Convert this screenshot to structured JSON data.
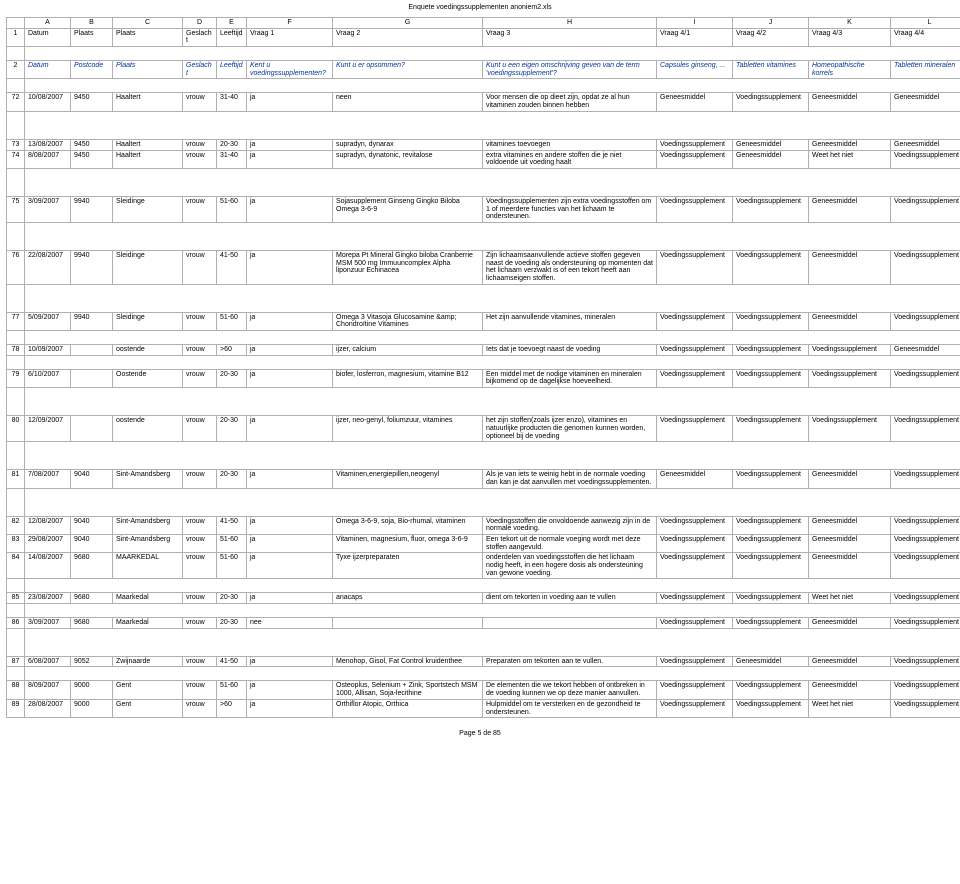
{
  "file_title": "Enquete voedingssupplementen anoniem2.xls",
  "footer": "Page 5 de 85",
  "col_letters": [
    "",
    "A",
    "B",
    "C",
    "D",
    "E",
    "F",
    "G",
    "H",
    "I",
    "J",
    "K",
    "L"
  ],
  "header_row1": {
    "rownum": "1",
    "cells": [
      "Datum",
      "Plaats",
      "Plaats",
      "Geslacht",
      "Leeftijd",
      "Vraag 1",
      "Vraag 2",
      "Vraag 3",
      "Vraag 4/1",
      "Vraag 4/2",
      "Vraag 4/3",
      "Vraag 4/4"
    ]
  },
  "header_row2": {
    "rownum": "2",
    "cells": [
      "Datum",
      "Postcode",
      "Plaats",
      "Geslacht",
      "Leeftijd",
      "Kent u voedingssupplementen?",
      "Kunt u er opsommen?",
      "Kunt u een eigen omschrijving geven van de term 'voedingssupplement'?",
      "Capsules ginseng, ...",
      "Tabletten vitamines",
      "Homeopathische korrels",
      "Tabletten mineralen"
    ]
  },
  "rows": [
    {
      "n": "72",
      "c": [
        "10/08/2007",
        "9450",
        "Haaltert",
        "vrouw",
        "31-40",
        "ja",
        "neen",
        "Voor mensen die op dieet zijn, opdat ze al hun vitaminen zouden binnen hebben",
        "Geneesmiddel",
        "Voedingssupplement",
        "Geneesmiddel",
        "Geneesmiddel"
      ]
    },
    {
      "n": "73",
      "c": [
        "13/08/2007",
        "9450",
        "Haaltert",
        "vrouw",
        "20-30",
        "ja",
        "supradyn, dynarax",
        "vitamines toevoegen",
        "Voedingssupplement",
        "Geneesmiddel",
        "Geneesmiddel",
        "Geneesmiddel"
      ]
    },
    {
      "n": "74",
      "c": [
        "8/08/2007",
        "9450",
        "Haaltert",
        "vrouw",
        "31-40",
        "ja",
        "supradyn, dynatonic, revitalose",
        "extra vitamines en andere stoffen die je niet voldoende uit voeding haalt",
        "Voedingssupplement",
        "Geneesmiddel",
        "Weet het niet",
        "Voedingssupplement"
      ]
    },
    {
      "n": "75",
      "c": [
        "3/09/2007",
        "9940",
        "Sleidinge",
        "vrouw",
        "51-60",
        "ja",
        "Sojasupplement Ginseng Gingko Biloba Omega 3-6-9",
        "Voedingssupplementen zijn extra voedingsstoffen om 1 of meerdere functies van het lichaam te ondersteunen.",
        "Voedingssupplement",
        "Voedingssupplement",
        "Geneesmiddel",
        "Voedingssupplement"
      ]
    },
    {
      "n": "76",
      "c": [
        "22/08/2007",
        "9940",
        "Sleidinge",
        "vrouw",
        "41-50",
        "ja",
        "Morepa Pt Mineral Gingko biloba Cranberrie MSM 500 mg Immuuncomplex Alpha liponzuur Echinacea",
        "Zijn lichaamsaanvullende actieve stoffen gegeven naast de voeding als ondersteuning op momenten dat het lichaam verzwakt is of een tekort heeft aan lichaamseigen stoffen.",
        "Voedingssupplement",
        "Voedingssupplement",
        "Geneesmiddel",
        "Voedingssupplement"
      ]
    },
    {
      "n": "77",
      "c": [
        "5/09/2007",
        "9940",
        "Sleidinge",
        "vrouw",
        "51-60",
        "ja",
        "Omega 3 Vitasoja Glucosamine &amp; Chondroïtine Vitamines",
        "Het zijn aanvullende vitamines, mineralen",
        "Voedingssupplement",
        "Voedingssupplement",
        "Geneesmiddel",
        "Voedingssupplement"
      ]
    },
    {
      "n": "78",
      "c": [
        "10/09/2007",
        "",
        "oostende",
        "vrouw",
        ">60",
        "ja",
        "ijzer, calcium",
        "Iets dat je toevoegt naast de voeding",
        "Voedingssupplement",
        "Voedingssupplement",
        "Voedingssupplement",
        "Geneesmiddel"
      ]
    },
    {
      "n": "79",
      "c": [
        "6/10/2007",
        "",
        "Oostende",
        "vrouw",
        "20-30",
        "ja",
        "biofer, losferron, magnesium, vitamine B12",
        "Een middel met de nodige vitaminen en mineralen bijkomend op de dagelijkse hoeveelheid.",
        "Voedingssupplement",
        "Voedingssupplement",
        "Voedingssupplement",
        "Voedingssupplement"
      ]
    },
    {
      "n": "80",
      "c": [
        "12/09/2007",
        "",
        "oostende",
        "vrouw",
        "20-30",
        "ja",
        "ijzer, neo-genyl, foliumzuur, vitamines",
        "het zijn stoffen(zoals ijzer enzo), vitamines en natuurlijke producten die genomen kunnen worden, optioneel bij de voeding",
        "Voedingssupplement",
        "Voedingssupplement",
        "Voedingssupplement",
        "Voedingssupplement"
      ]
    },
    {
      "n": "81",
      "c": [
        "7/08/2007",
        "9040",
        "Sint-Amandsberg",
        "vrouw",
        "20-30",
        "ja",
        "Vitaminen,energiepillen,neogenyl",
        "Als je van iets te weinig hebt in de normale voeding dan kan je dat aanvullen met voedingssupplementen.",
        "Geneesmiddel",
        "Voedingssupplement",
        "Geneesmiddel",
        "Voedingssupplement"
      ]
    },
    {
      "n": "82",
      "c": [
        "12/08/2007",
        "9040",
        "Sint-Amandsberg",
        "vrouw",
        "41-50",
        "ja",
        "Omega 3-6-9, soja, Bio-rhumal, vitaminen",
        "Voedingsstoffen die onvoldoende aanwezig zijn in de normale voeding.",
        "Voedingssupplement",
        "Voedingssupplement",
        "Geneesmiddel",
        "Voedingssupplement"
      ]
    },
    {
      "n": "83",
      "c": [
        "29/08/2007",
        "9040",
        "Sint-Amandsberg",
        "vrouw",
        "51-60",
        "ja",
        "Vitaminen, magnesium, fluor, omega 3-6-9",
        "Een tekort uit de normale voeging wordt met deze stoffen aangevuld.",
        "Voedingssupplement",
        "Voedingssupplement",
        "Geneesmiddel",
        "Voedingssupplement"
      ]
    },
    {
      "n": "84",
      "c": [
        "14/08/2007",
        "9680",
        "MAARKEDAL",
        "vrouw",
        "51-60",
        "ja",
        "Tyxe ijzerpreparaten",
        "onderdelen van voedingsstoffen die het lichaam nodig heeft, in een hogere dosis als ondersteuning van gewone voeding.",
        "Voedingssupplement",
        "Voedingssupplement",
        "Geneesmiddel",
        "Voedingssupplement"
      ]
    },
    {
      "n": "85",
      "c": [
        "23/08/2007",
        "9680",
        "Maarkedal",
        "vrouw",
        "20-30",
        "ja",
        "anacaps",
        "dient om tekorten in voeding aan te vullen",
        "Voedingssupplement",
        "Voedingssupplement",
        "Weet het niet",
        "Voedingssupplement"
      ]
    },
    {
      "n": "86",
      "c": [
        "3/09/2007",
        "9680",
        "Maarkedal",
        "vrouw",
        "20-30",
        "nee",
        "",
        "",
        "Voedingssupplement",
        "Voedingssupplement",
        "Geneesmiddel",
        "Voedingssupplement"
      ]
    },
    {
      "n": "87",
      "c": [
        "6/08/2007",
        "9052",
        "Zwijnaarde",
        "vrouw",
        "41-50",
        "ja",
        "Menohop, Gisol, Fat Control kruidenthee",
        "Preparaten om tekorten aan te vullen.",
        "Voedingssupplement",
        "Geneesmiddel",
        "Geneesmiddel",
        "Voedingssupplement"
      ]
    },
    {
      "n": "88",
      "c": [
        "8/09/2007",
        "9000",
        "Gent",
        "vrouw",
        "51-60",
        "ja",
        "Osteoplus, Selenium + Zink, Sportstech MSM 1000, Allisan, Soja-lecithine",
        "De elementen die we tekort hebben of ontbreken in de voeding kunnen we op deze manier aanvullen.",
        "Voedingssupplement",
        "Voedingssupplement",
        "Geneesmiddel",
        "Voedingssupplement"
      ]
    },
    {
      "n": "89",
      "c": [
        "28/08/2007",
        "9000",
        "Gent",
        "vrouw",
        ">60",
        "ja",
        "Orthiflor Atopic, Orthica",
        "Hulpmiddel om te versterken en de gezondheid te ondersteunen.",
        "Voedingssupplement",
        "Voedingssupplement",
        "Weet het niet",
        "Voedingssupplement"
      ]
    }
  ],
  "spacer_after": {
    "72": "spacer",
    "74": "spacer",
    "75": "spacer",
    "76": "spacer",
    "77": "spacer-sm",
    "78": "spacer-sm",
    "79": "spacer",
    "80": "spacer",
    "81": "spacer",
    "83": "",
    "84": "spacer-sm",
    "85": "spacer-sm",
    "86": "spacer",
    "87": "spacer-sm"
  },
  "colors": {
    "blue": "#003399",
    "grid": "#b0b0b0"
  }
}
